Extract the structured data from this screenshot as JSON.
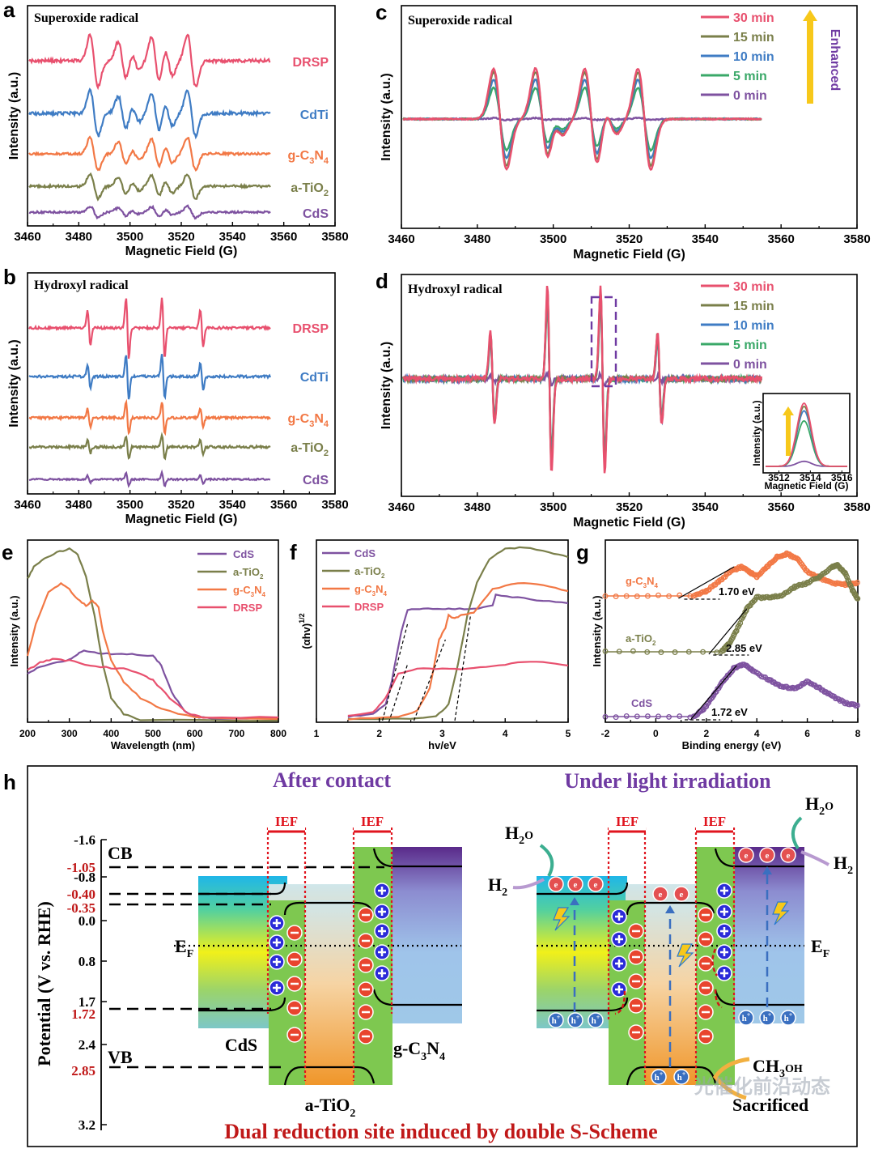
{
  "colors": {
    "DRSP": "#e8506e",
    "CdTi": "#3f7cc4",
    "gC3N4": "#f27845",
    "aTiO2": "#7a7f4a",
    "CdS": "#7e52a0",
    "green": "#3aa868",
    "olive": "#7a7f4a",
    "ief": "#e0141e",
    "purple": "#6f3aa2",
    "darkred": "#c01818"
  },
  "chart_data": [
    {
      "panel": "a",
      "type": "line",
      "title": "Superoxide radical",
      "xlabel": "Magnetic Field (G)",
      "ylabel": "Intensity (a.u.)",
      "xlim": [
        3460,
        3580
      ],
      "xticks": [
        "3460",
        "3480",
        "3500",
        "3520",
        "3540",
        "3560",
        "3580"
      ],
      "series": [
        {
          "name": "DRSP"
        },
        {
          "name": "CdTi"
        },
        {
          "name": "g-C",
          "sub": "3",
          "mid": "N",
          "sub2": "4"
        },
        {
          "name": "a-TiO",
          "sub": "2"
        },
        {
          "name": "CdS"
        }
      ]
    },
    {
      "panel": "b",
      "type": "line",
      "title": "Hydroxyl radical",
      "xlabel": "Magnetic Field (G)",
      "ylabel": "Intensity (a.u.)",
      "xlim": [
        3460,
        3580
      ],
      "xticks": [
        "3460",
        "3480",
        "3500",
        "3520",
        "3540",
        "3560",
        "3580"
      ],
      "series": [
        {
          "name": "DRSP"
        },
        {
          "name": "CdTi"
        },
        {
          "name": "g-C",
          "sub": "3",
          "mid": "N",
          "sub2": "4"
        },
        {
          "name": "a-TiO",
          "sub": "2"
        },
        {
          "name": "CdS"
        }
      ]
    },
    {
      "panel": "c",
      "type": "line",
      "title": "Superoxide radical",
      "xlabel": "Magnetic Field (G)",
      "ylabel": "Intensity (a.u.)",
      "xlim": [
        3460,
        3580
      ],
      "xticks": [
        "3460",
        "3480",
        "3500",
        "3520",
        "3540",
        "3560",
        "3580"
      ],
      "series": [
        {
          "name": "30 min"
        },
        {
          "name": "15 min"
        },
        {
          "name": "10 min"
        },
        {
          "name": "5 min"
        },
        {
          "name": "0 min"
        }
      ],
      "annotation": "Enhanced"
    },
    {
      "panel": "d",
      "type": "line",
      "title": "Hydroxyl radical",
      "xlabel": "Magnetic Field (G)",
      "ylabel": "Intensity (a.u.)",
      "xlim": [
        3460,
        3580
      ],
      "xticks": [
        "3460",
        "3480",
        "3500",
        "3520",
        "3540",
        "3560",
        "3580"
      ],
      "series": [
        {
          "name": "30 min"
        },
        {
          "name": "15 min"
        },
        {
          "name": "10 min"
        },
        {
          "name": "5 min"
        },
        {
          "name": "0 min"
        }
      ],
      "inset": {
        "xlabel": "Magnetic Field (G)",
        "ylabel": "Intensity (a.u.)",
        "xticks": [
          "3512",
          "3514",
          "3516"
        ]
      }
    },
    {
      "panel": "e",
      "type": "line",
      "xlabel": "Wavelength (nm)",
      "ylabel": "Intensity (a.u.)",
      "xlim": [
        200,
        800
      ],
      "xticks": [
        "200",
        "300",
        "400",
        "500",
        "600",
        "700",
        "800"
      ],
      "series": [
        {
          "name": "CdS"
        },
        {
          "name": "a-TiO",
          "sub": "2"
        },
        {
          "name": "g-C",
          "sub": "3",
          "mid": "N",
          "sub2": "4"
        },
        {
          "name": "DRSP"
        }
      ]
    },
    {
      "panel": "f",
      "type": "line",
      "xlabel": "hv/eV",
      "ylabel": "(αhv)",
      "ylabel_sup": "1/2",
      "xlim": [
        1,
        5
      ],
      "xticks": [
        "1",
        "2",
        "3",
        "4",
        "5"
      ],
      "series": [
        {
          "name": "CdS"
        },
        {
          "name": "a-TiO",
          "sub": "2"
        },
        {
          "name": "g-C",
          "sub": "3",
          "mid": "N",
          "sub2": "4"
        },
        {
          "name": "DRSP"
        }
      ]
    },
    {
      "panel": "g",
      "type": "scatter",
      "xlabel": "Binding energy (eV)",
      "ylabel": "Intensity (a.u.)",
      "xlim": [
        -2,
        8
      ],
      "xticks": [
        "-2",
        "0",
        "2",
        "4",
        "6",
        "8"
      ],
      "series": [
        {
          "name": "g-C",
          "sub": "3",
          "mid": "N",
          "sub2": "4",
          "value": "1.70 eV",
          "edge_ev": 1.7
        },
        {
          "name": "a-TiO",
          "sub": "2",
          "value": "2.85 eV",
          "edge_ev": 2.85
        },
        {
          "name": "CdS",
          "value": "1.72 eV",
          "edge_ev": 1.72
        }
      ]
    }
  ],
  "panel_h": {
    "label": "h",
    "title_left": "After contact",
    "title_right": "Under light irradiation",
    "ylabel": "Potential (V vs. RHE)",
    "yticks": [
      "-1.6",
      "-0.8",
      "0.0",
      "0.8",
      "1.7",
      "2.4",
      "3.2"
    ],
    "red_ticks": [
      "-1.05",
      "-0.40",
      "-0.35",
      "1.72",
      "2.85"
    ],
    "cb": "CB",
    "vb": "VB",
    "ef": "E",
    "ef_sub": "F",
    "ief": "IEF",
    "cds": "CdS",
    "atio2": "a-TiO",
    "atio2_sub": "2",
    "gcn": "g-C",
    "gcn_sub": "3",
    "gcn_mid": "N",
    "gcn_sub2": "4",
    "h2o": "H",
    "h2o_sub": "2",
    "h2o_end": "O",
    "h2": "H",
    "h2_sub": "2",
    "ch3oh": "CH",
    "ch3oh_sub": "3",
    "ch3oh_end": "OH",
    "sacrificed": "Sacrificed",
    "electron": "e",
    "hole": "h",
    "hole_sup": "+",
    "footer": "Dual reduction site induced by double S-Scheme",
    "watermark": "光催化前沿动态"
  }
}
